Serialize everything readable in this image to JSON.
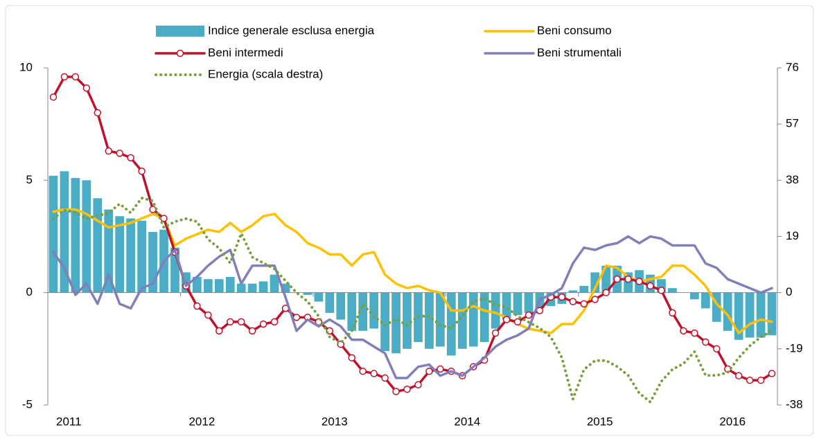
{
  "chart_data": {
    "type": "combo",
    "categories": [
      "2011",
      null,
      null,
      null,
      null,
      null,
      null,
      null,
      null,
      null,
      null,
      null,
      "2012",
      null,
      null,
      null,
      null,
      null,
      null,
      null,
      null,
      null,
      null,
      null,
      "2013",
      null,
      null,
      null,
      null,
      null,
      null,
      null,
      null,
      null,
      null,
      null,
      "2014",
      null,
      null,
      null,
      null,
      null,
      null,
      null,
      null,
      null,
      null,
      null,
      "2015",
      null,
      null,
      null,
      null,
      null,
      null,
      null,
      null,
      null,
      null,
      null,
      "2016",
      null,
      null,
      null,
      null,
      null
    ],
    "ylim": [
      -5,
      10
    ],
    "yticks": [
      -5,
      0,
      5,
      10
    ],
    "y2lim": [
      -38,
      76
    ],
    "y2ticks": [
      -38,
      -19,
      0,
      19,
      38,
      57,
      76
    ],
    "series": [
      {
        "name": "Indice generale esclusa energia",
        "type": "bar",
        "color": "#4bacc6",
        "values": [
          5.2,
          5.4,
          5.1,
          5.0,
          4.2,
          3.7,
          3.4,
          3.3,
          3.2,
          2.7,
          2.8,
          2.0,
          0.9,
          0.7,
          0.6,
          0.6,
          0.7,
          0.4,
          0.4,
          0.5,
          0.8,
          0.4,
          0.0,
          -0.1,
          -0.4,
          -0.9,
          -1.2,
          -1.7,
          -1.7,
          -1.6,
          -2.6,
          -2.7,
          -2.5,
          -2.2,
          -2.5,
          -2.4,
          -2.8,
          -2.5,
          -2.4,
          -2.2,
          -1.6,
          -1.2,
          -1.0,
          -0.9,
          -0.7,
          -0.6,
          -0.5,
          0.1,
          0.3,
          0.9,
          1.2,
          1.2,
          0.9,
          1.0,
          0.8,
          0.6,
          0.2,
          0.0,
          -0.3,
          -0.7,
          -1.3,
          -1.7,
          -2.1,
          -2.0,
          -2.0,
          -1.9
        ]
      },
      {
        "name": "Beni consumo",
        "type": "line",
        "color": "#ffc000",
        "values": [
          3.6,
          3.7,
          3.7,
          3.5,
          3.2,
          2.9,
          3.0,
          3.1,
          3.3,
          3.5,
          3.3,
          2.1,
          2.4,
          2.6,
          2.8,
          2.7,
          3.1,
          2.7,
          3.0,
          3.4,
          3.5,
          3.0,
          2.7,
          2.2,
          2.0,
          1.7,
          1.7,
          1.2,
          1.7,
          1.8,
          0.8,
          0.4,
          0.2,
          0.3,
          0.1,
          0.0,
          -0.8,
          -0.8,
          -0.6,
          -0.8,
          -0.9,
          -1.1,
          -1.4,
          -1.6,
          -1.7,
          -1.8,
          -1.4,
          -1.4,
          -0.8,
          0.2,
          1.2,
          1.1,
          0.7,
          0.5,
          0.6,
          0.7,
          1.2,
          1.2,
          0.8,
          0.3,
          -0.5,
          -1.0,
          -1.8,
          -1.4,
          -1.2,
          -1.3
        ]
      },
      {
        "name": "Beni intermedi",
        "type": "line",
        "marker": "circle",
        "color": "#c0102c",
        "values": [
          8.7,
          9.6,
          9.6,
          9.1,
          8.0,
          6.3,
          6.2,
          6.0,
          5.4,
          3.7,
          3.3,
          1.8,
          0.3,
          -0.6,
          -1.0,
          -1.7,
          -1.3,
          -1.3,
          -1.7,
          -1.4,
          -1.3,
          -0.7,
          -1.1,
          -1.1,
          -1.3,
          -1.7,
          -2.3,
          -2.9,
          -3.5,
          -3.6,
          -3.8,
          -4.4,
          -4.3,
          -4.1,
          -3.5,
          -3.4,
          -3.5,
          -3.7,
          -3.3,
          -3.0,
          -1.8,
          -1.2,
          -1.3,
          -1.0,
          -0.8,
          -0.2,
          -0.2,
          -0.4,
          -0.5,
          -0.3,
          0.0,
          0.6,
          0.6,
          0.5,
          0.3,
          0.1,
          -0.9,
          -1.7,
          -1.8,
          -2.2,
          -2.5,
          -3.4,
          -3.7,
          -3.9,
          -3.9,
          -3.6
        ]
      },
      {
        "name": "Beni strumentali",
        "type": "line",
        "color": "#8080b8",
        "values": [
          1.8,
          1.1,
          -0.1,
          0.4,
          -0.5,
          0.8,
          -0.5,
          -0.7,
          0.2,
          0.4,
          1.4,
          1.9,
          0.3,
          0.7,
          1.2,
          1.6,
          1.9,
          0.4,
          1.2,
          1.2,
          1.2,
          -0.2,
          -1.7,
          -1.2,
          -1.5,
          -1.2,
          -1.5,
          -2.1,
          -2.1,
          -2.4,
          -2.7,
          -3.8,
          -3.8,
          -3.3,
          -3.2,
          -3.7,
          -3.5,
          -3.7,
          -3.3,
          -2.9,
          -2.4,
          -2.1,
          -1.9,
          -1.6,
          -0.3,
          -0.1,
          0.2,
          1.3,
          2.0,
          1.9,
          2.1,
          2.2,
          2.5,
          2.2,
          2.5,
          2.4,
          2.1,
          2.1,
          2.1,
          1.3,
          1.1,
          0.6,
          0.4,
          0.2,
          0.0,
          0.2
        ]
      },
      {
        "name": "Energia (scala destra)",
        "type": "line",
        "style": "dotted",
        "axis": "y2",
        "color": "#77a03c",
        "values": [
          25,
          28,
          27,
          25,
          26,
          27,
          30,
          27,
          32,
          31,
          22,
          24,
          25,
          24,
          18,
          15,
          10,
          20,
          12,
          10,
          8,
          4,
          0,
          -3,
          -8,
          -15,
          -17,
          -13,
          -4,
          -8,
          -11,
          -9,
          -11,
          -8,
          -8,
          -11,
          -12,
          -8,
          -3,
          -2,
          -4,
          -5,
          -8,
          -10,
          -12,
          -15,
          -22,
          -36,
          -26,
          -23,
          -23,
          -25,
          -28,
          -34,
          -37,
          -30,
          -26,
          -24,
          -20,
          -28,
          -28,
          -27,
          -22,
          -18,
          -15,
          -13
        ]
      }
    ]
  }
}
